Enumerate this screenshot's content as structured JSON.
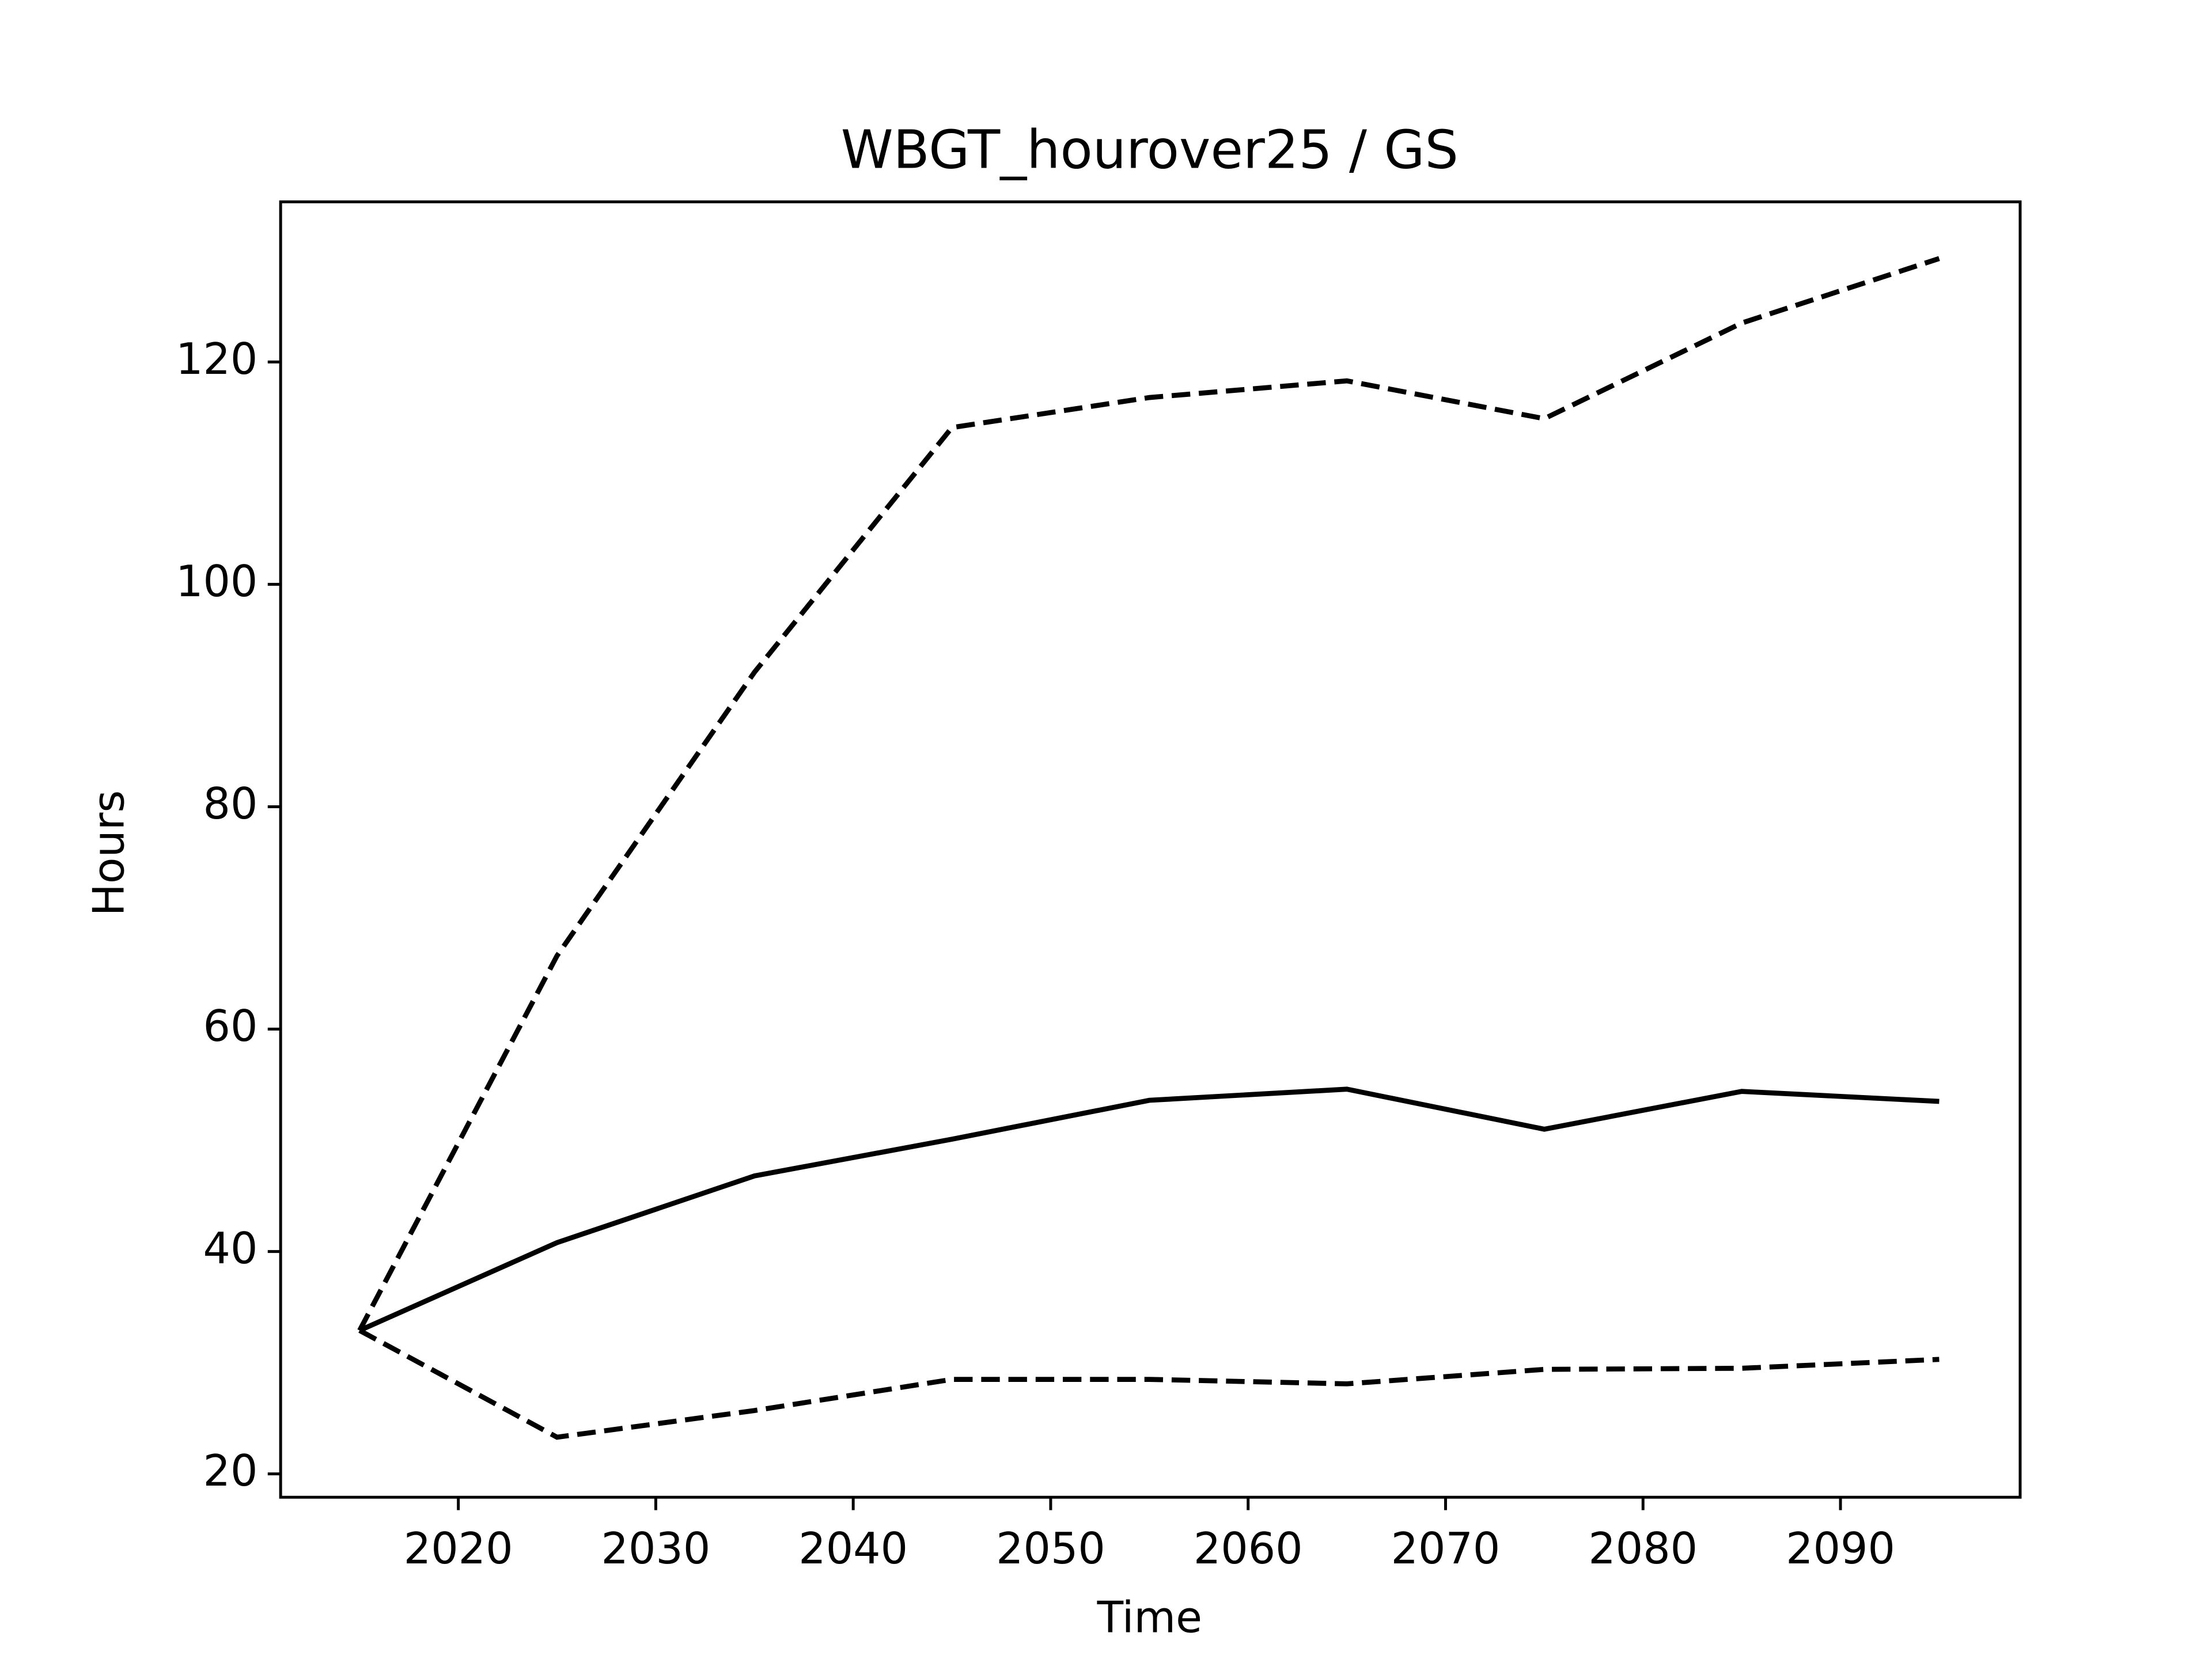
{
  "chart_data": {
    "type": "line",
    "title": "WBGT_hourover25 / GS",
    "xlabel": "Time",
    "ylabel": "Hours",
    "x": [
      2015,
      2025,
      2035,
      2045,
      2055,
      2065,
      2075,
      2085,
      2095
    ],
    "series": [
      {
        "color": "#000000",
        "linestyle": "dashed",
        "values": [
          32.9,
          66.6,
          92.1,
          114.1,
          116.8,
          118.3,
          114.9,
          123.5,
          129.3
        ]
      },
      {
        "color": "#000000",
        "linestyle": "solid",
        "values": [
          32.9,
          40.8,
          46.8,
          50.1,
          53.6,
          54.6,
          51.0,
          54.4,
          53.5
        ]
      },
      {
        "color": "#000000",
        "linestyle": "dashed",
        "values": [
          32.9,
          23.3,
          25.7,
          28.5,
          28.5,
          28.1,
          29.4,
          29.5,
          30.3
        ]
      }
    ],
    "xlim": [
      2011.0,
      2099.1
    ],
    "ylim": [
      17.9,
      134.4
    ],
    "xticks": [
      2020,
      2030,
      2040,
      2050,
      2060,
      2070,
      2080,
      2090
    ],
    "yticks": [
      20,
      40,
      60,
      80,
      100,
      120
    ],
    "grid": false
  }
}
